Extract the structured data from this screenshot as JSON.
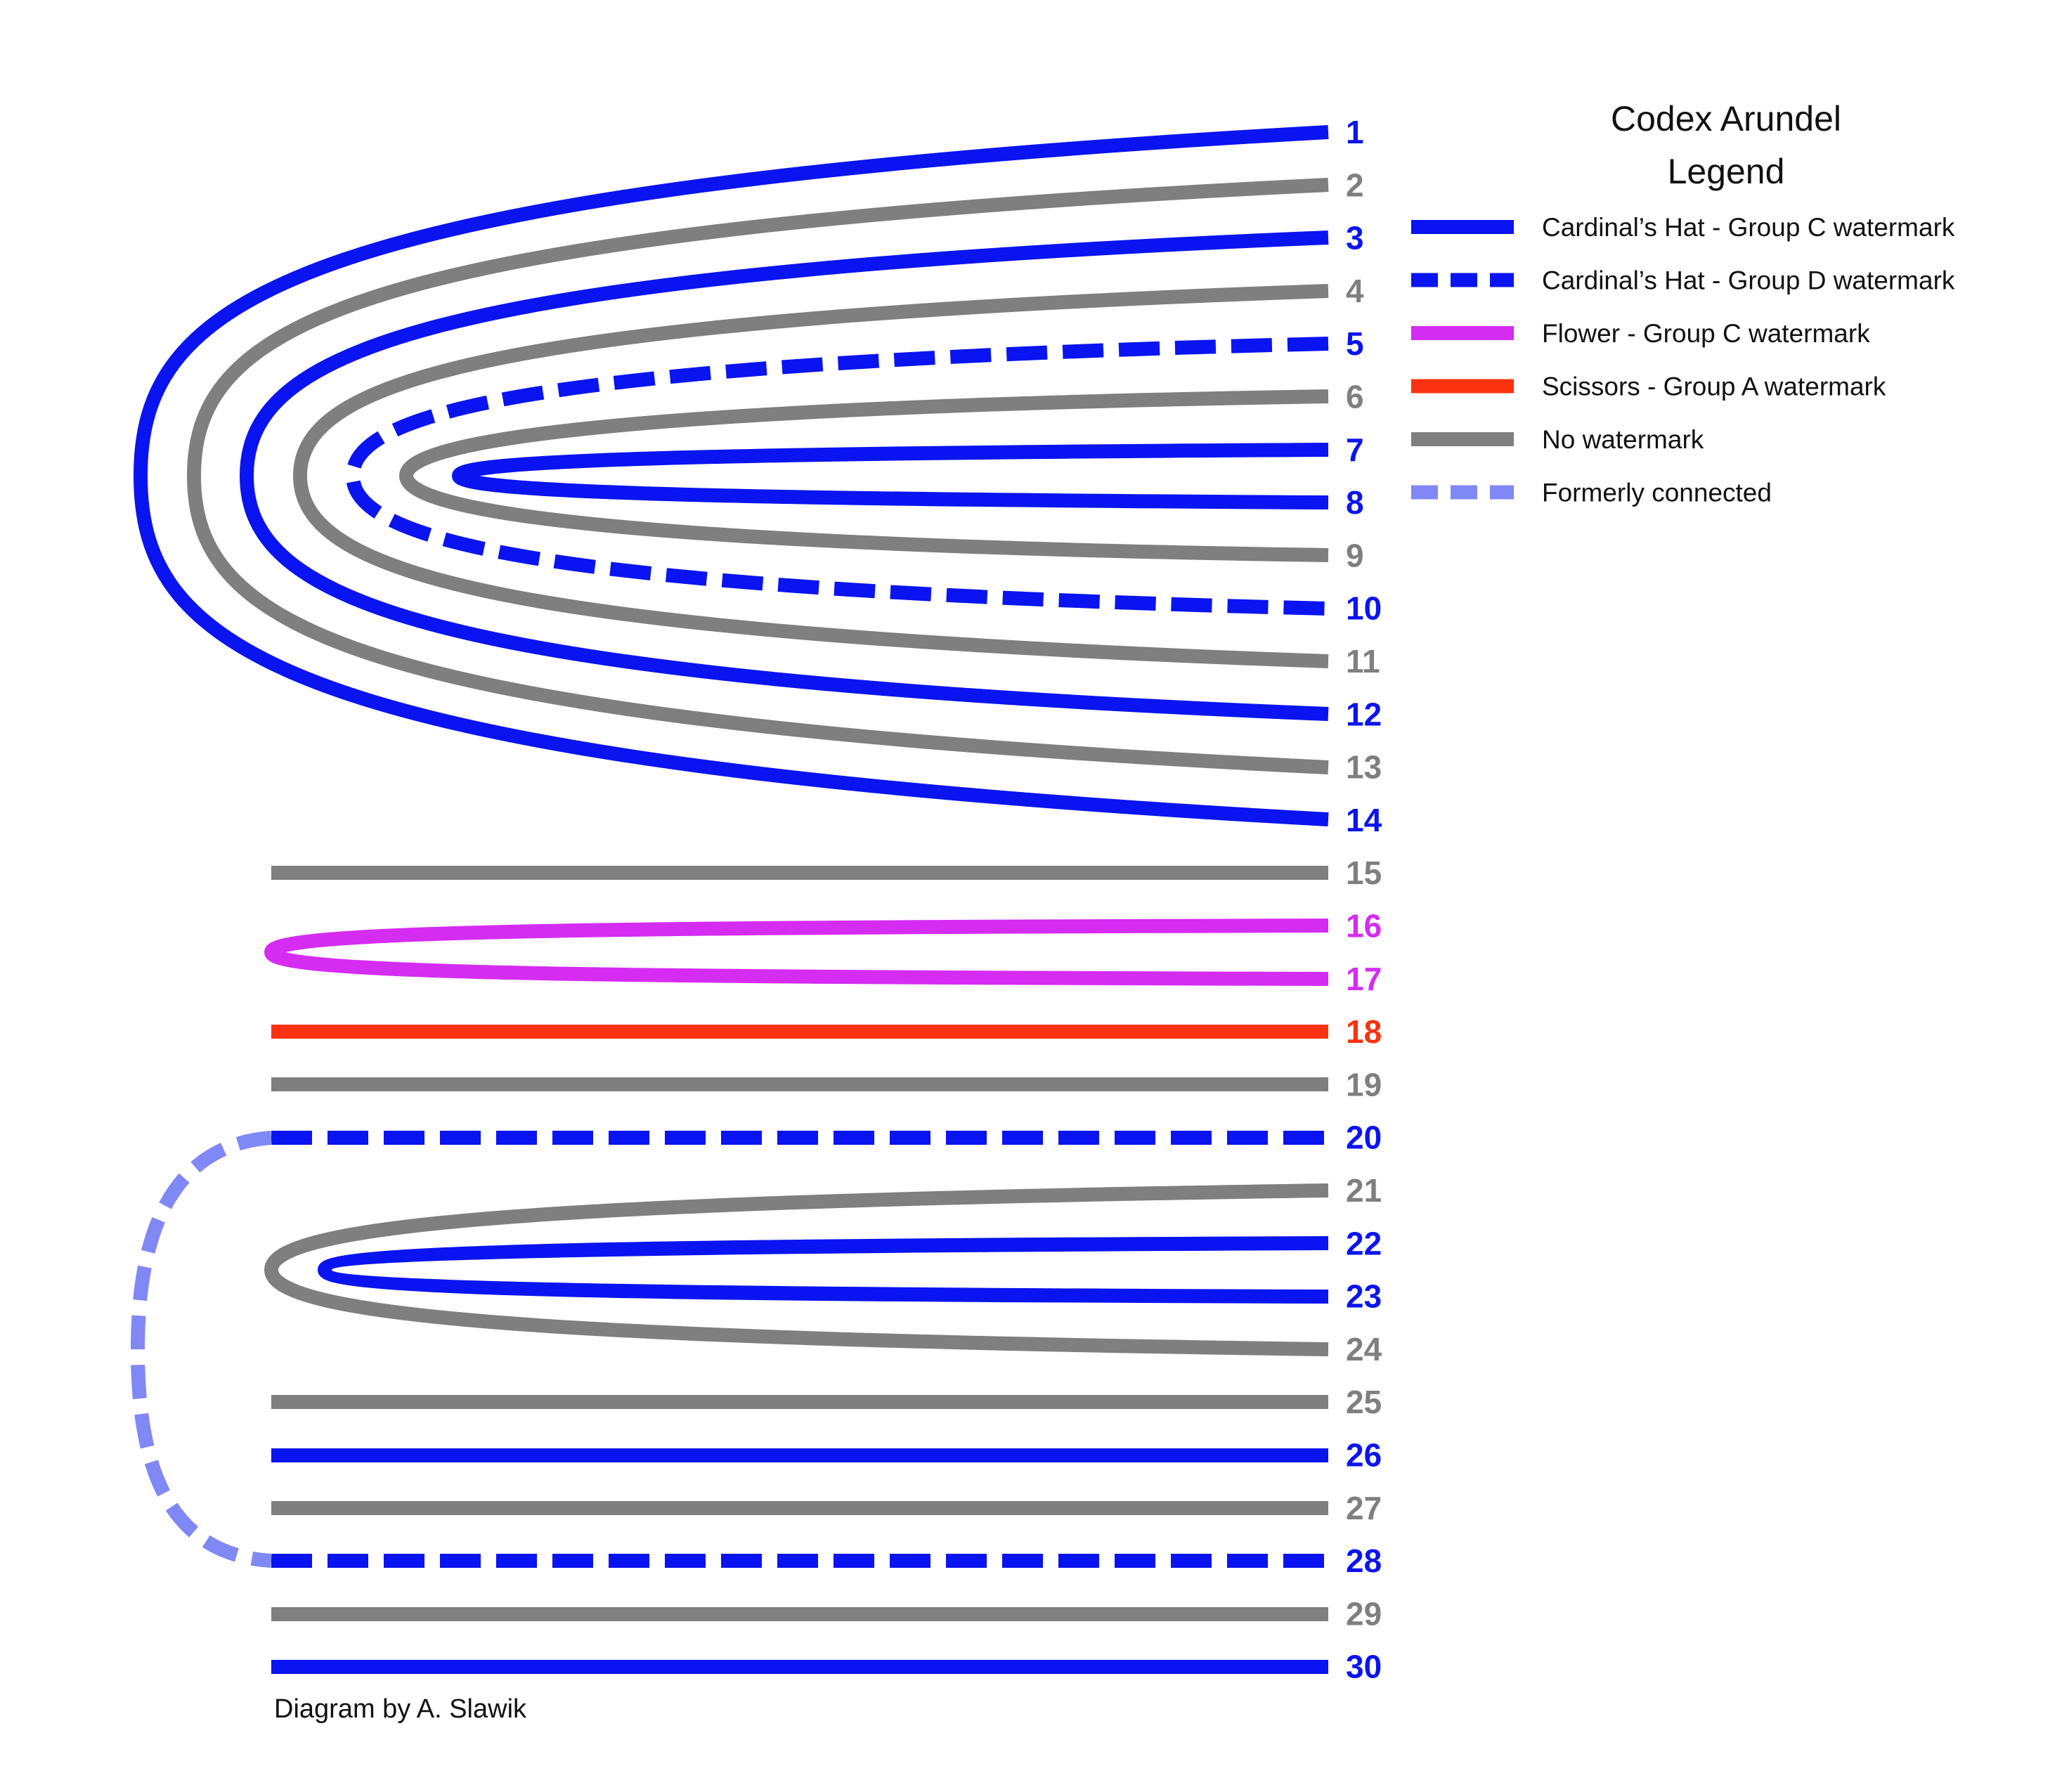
{
  "title": "Codex Arundel",
  "legend_heading": "Legend",
  "credit": "Diagram by A. Slawik",
  "colors": {
    "blue": "#0a14f0",
    "grey": "#7f7f7f",
    "magenta": "#d52cf2",
    "red": "#fa320f",
    "light_blue": "#8088f5"
  },
  "legend": [
    {
      "label": "Cardinal’s Hat - Group C watermark",
      "color": "#0a14f0",
      "style": "solid"
    },
    {
      "label": "Cardinal’s Hat - Group D watermark",
      "color": "#0a14f0",
      "style": "dashed"
    },
    {
      "label": "Flower - Group C watermark",
      "color": "#d52cf2",
      "style": "solid"
    },
    {
      "label": "Scissors - Group A watermark",
      "color": "#fa320f",
      "style": "solid"
    },
    {
      "label": "No watermark",
      "color": "#7f7f7f",
      "style": "solid"
    },
    {
      "label": "Formerly connected",
      "color": "#8088f5",
      "style": "dashed"
    }
  ],
  "leaves": [
    {
      "label": "1",
      "color": "#0a14f0"
    },
    {
      "label": "2",
      "color": "#7f7f7f"
    },
    {
      "label": "3",
      "color": "#0a14f0"
    },
    {
      "label": "4",
      "color": "#7f7f7f"
    },
    {
      "label": "5",
      "color": "#0a14f0"
    },
    {
      "label": "6",
      "color": "#7f7f7f"
    },
    {
      "label": "7",
      "color": "#0a14f0"
    },
    {
      "label": "8",
      "color": "#0a14f0"
    },
    {
      "label": "9",
      "color": "#7f7f7f"
    },
    {
      "label": "10",
      "color": "#0a14f0"
    },
    {
      "label": "11",
      "color": "#7f7f7f"
    },
    {
      "label": "12",
      "color": "#0a14f0"
    },
    {
      "label": "13",
      "color": "#7f7f7f"
    },
    {
      "label": "14",
      "color": "#0a14f0"
    },
    {
      "label": "15",
      "color": "#7f7f7f"
    },
    {
      "label": "16",
      "color": "#d52cf2"
    },
    {
      "label": "17",
      "color": "#d52cf2"
    },
    {
      "label": "18",
      "color": "#fa320f"
    },
    {
      "label": "19",
      "color": "#7f7f7f"
    },
    {
      "label": "20",
      "color": "#0a14f0"
    },
    {
      "label": "21",
      "color": "#7f7f7f"
    },
    {
      "label": "22",
      "color": "#0a14f0"
    },
    {
      "label": "23",
      "color": "#0a14f0"
    },
    {
      "label": "24",
      "color": "#7f7f7f"
    },
    {
      "label": "25",
      "color": "#7f7f7f"
    },
    {
      "label": "26",
      "color": "#0a14f0"
    },
    {
      "label": "27",
      "color": "#7f7f7f"
    },
    {
      "label": "28",
      "color": "#0a14f0"
    },
    {
      "label": "29",
      "color": "#7f7f7f"
    },
    {
      "label": "30",
      "color": "#0a14f0"
    }
  ]
}
